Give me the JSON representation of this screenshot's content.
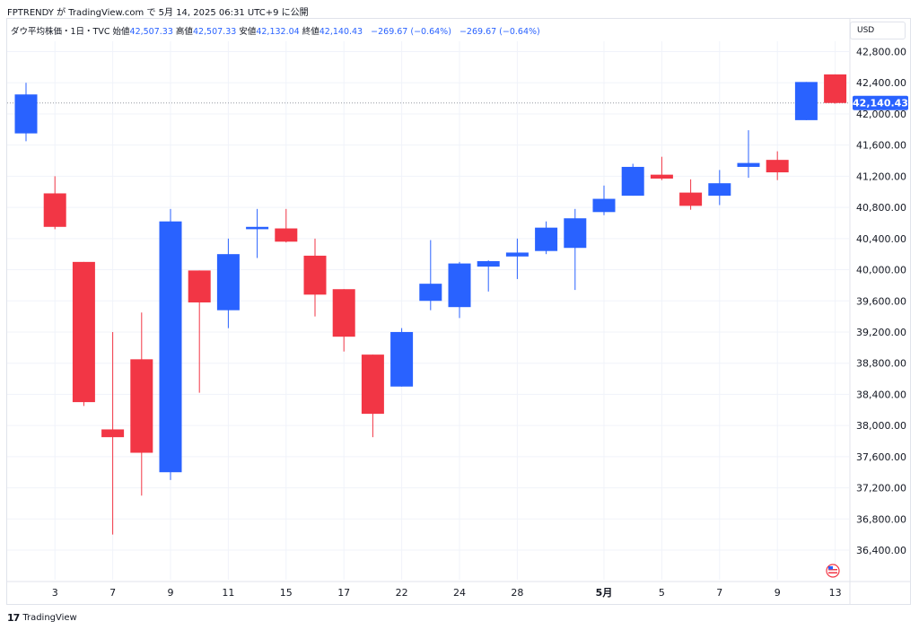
{
  "header": {
    "published": "FPTRENDY が TradingView.com で 5月 14, 2025 06:31 UTC+9 に公開"
  },
  "legend": {
    "symbol": "ダウ平均株価・1日・TVC",
    "open_label": "始値",
    "open": "42,507.33",
    "high_label": "高値",
    "high": "42,507.33",
    "low_label": "安値",
    "low": "42,132.04",
    "close_label": "終値",
    "close": "42,140.43",
    "change": "−269.67 (−0.64%)",
    "change2": "−269.67 (−0.64%)"
  },
  "currency": "USD",
  "footer": {
    "logo": "17",
    "brand": "TradingView"
  },
  "colors": {
    "up": "#2962ff",
    "down": "#f23645",
    "grid": "#f0f3fa",
    "axis_text": "#131722",
    "last_price_bg": "#2962ff"
  },
  "chart_data": {
    "type": "candlestick",
    "ylim": [
      36000,
      43200
    ],
    "yticks": [
      "42,800.00",
      "42,400.00",
      "42,000.00",
      "41,600.00",
      "41,200.00",
      "40,800.00",
      "40,400.00",
      "40,000.00",
      "39,600.00",
      "39,200.00",
      "38,800.00",
      "38,400.00",
      "38,000.00",
      "37,600.00",
      "37,200.00",
      "36,800.00",
      "36,400.00"
    ],
    "ytick_values": [
      42800,
      42400,
      42000,
      41600,
      41200,
      40800,
      40400,
      40000,
      39600,
      39200,
      38800,
      38400,
      38000,
      37600,
      37200,
      36800,
      36400
    ],
    "xticks": [
      {
        "label": "3",
        "index": 1
      },
      {
        "label": "7",
        "index": 3
      },
      {
        "label": "9",
        "index": 5
      },
      {
        "label": "11",
        "index": 7
      },
      {
        "label": "15",
        "index": 9
      },
      {
        "label": "17",
        "index": 11
      },
      {
        "label": "22",
        "index": 13
      },
      {
        "label": "24",
        "index": 15
      },
      {
        "label": "28",
        "index": 17
      },
      {
        "label": "5月",
        "index": 20,
        "bold": true
      },
      {
        "label": "5",
        "index": 22
      },
      {
        "label": "7",
        "index": 24
      },
      {
        "label": "9",
        "index": 26
      },
      {
        "label": "13",
        "index": 28
      }
    ],
    "last_price": "42,140.43",
    "last_price_value": 42140.43,
    "candles": [
      {
        "o": 41750,
        "h": 42400,
        "l": 41650,
        "c": 42250
      },
      {
        "o": 40980,
        "h": 41200,
        "l": 40520,
        "c": 40550
      },
      {
        "o": 40100,
        "h": 40100,
        "l": 38250,
        "c": 38300
      },
      {
        "o": 37950,
        "h": 39200,
        "l": 36600,
        "c": 37850
      },
      {
        "o": 38850,
        "h": 39450,
        "l": 37100,
        "c": 37650
      },
      {
        "o": 37400,
        "h": 40780,
        "l": 37300,
        "c": 40620
      },
      {
        "o": 39990,
        "h": 39990,
        "l": 38420,
        "c": 39580
      },
      {
        "o": 39480,
        "h": 40400,
        "l": 39250,
        "c": 40200
      },
      {
        "o": 40520,
        "h": 40780,
        "l": 40150,
        "c": 40550
      },
      {
        "o": 40530,
        "h": 40780,
        "l": 40350,
        "c": 40360
      },
      {
        "o": 40180,
        "h": 40400,
        "l": 39400,
        "c": 39680
      },
      {
        "o": 39750,
        "h": 39750,
        "l": 38950,
        "c": 39140
      },
      {
        "o": 38910,
        "h": 38910,
        "l": 37850,
        "c": 38150
      },
      {
        "o": 38500,
        "h": 39250,
        "l": 38500,
        "c": 39200
      },
      {
        "o": 39600,
        "h": 40380,
        "l": 39480,
        "c": 39820
      },
      {
        "o": 39520,
        "h": 40100,
        "l": 39380,
        "c": 40080
      },
      {
        "o": 40040,
        "h": 40120,
        "l": 39720,
        "c": 40110
      },
      {
        "o": 40170,
        "h": 40400,
        "l": 39880,
        "c": 40220
      },
      {
        "o": 40240,
        "h": 40620,
        "l": 40200,
        "c": 40540
      },
      {
        "o": 40280,
        "h": 40780,
        "l": 39740,
        "c": 40660
      },
      {
        "o": 40740,
        "h": 41080,
        "l": 40700,
        "c": 40910
      },
      {
        "o": 40950,
        "h": 41360,
        "l": 40950,
        "c": 41320
      },
      {
        "o": 41220,
        "h": 41450,
        "l": 41150,
        "c": 41170
      },
      {
        "o": 40990,
        "h": 41160,
        "l": 40770,
        "c": 40820
      },
      {
        "o": 40950,
        "h": 41280,
        "l": 40830,
        "c": 41110
      },
      {
        "o": 41320,
        "h": 41790,
        "l": 41180,
        "c": 41370
      },
      {
        "o": 41410,
        "h": 41520,
        "l": 41150,
        "c": 41250
      },
      {
        "o": 41920,
        "h": 42410,
        "l": 41920,
        "c": 42410
      },
      {
        "o": 42507.33,
        "h": 42507.33,
        "l": 42132.04,
        "c": 42140.43
      }
    ]
  }
}
